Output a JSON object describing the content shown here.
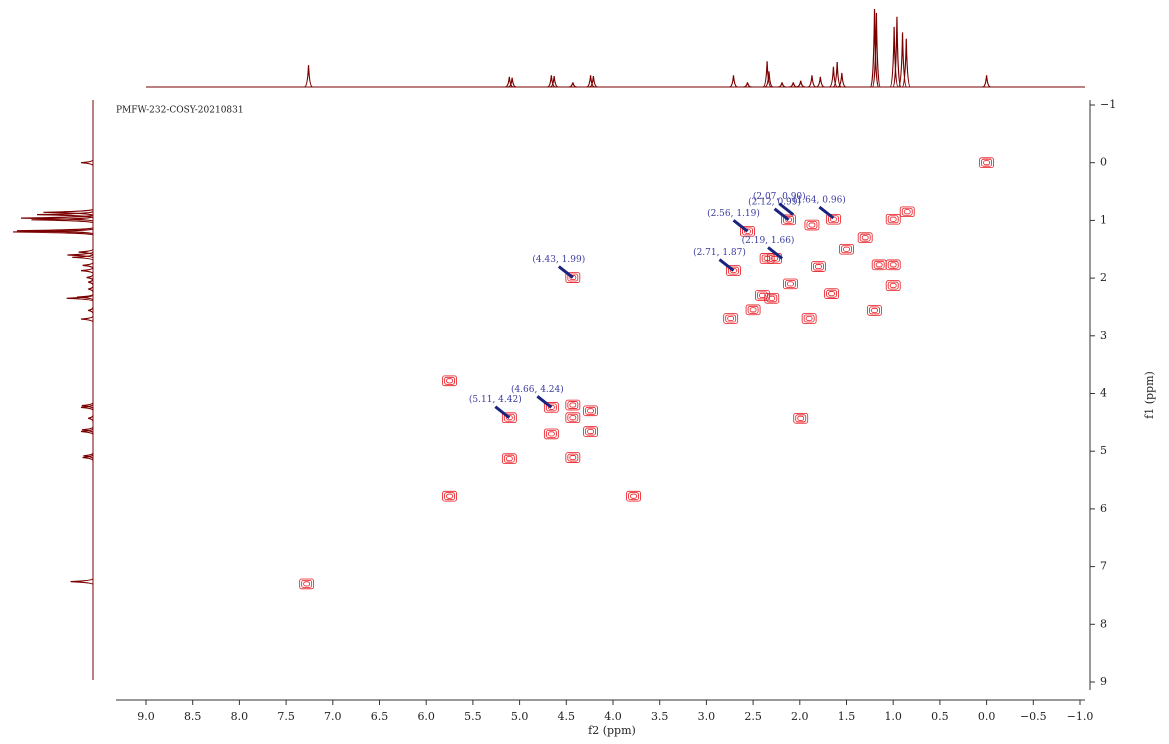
{
  "chart_data": {
    "type": "contour",
    "title": "PMFW-232-COSY-20210831",
    "x_label": "f2 (ppm)",
    "y_label": "f1 (ppm)",
    "xlim": [
      9.0,
      -1.0
    ],
    "xticks": [
      {
        "value": 9,
        "label": "9.0"
      },
      {
        "value": 8.5,
        "label": "8.5"
      },
      {
        "value": 8,
        "label": "8.0"
      },
      {
        "value": 7.5,
        "label": "7.5"
      },
      {
        "value": 7,
        "label": "7.0"
      },
      {
        "value": 6.5,
        "label": "6.5"
      },
      {
        "value": 6,
        "label": "6.0"
      },
      {
        "value": 5.5,
        "label": "5.5"
      },
      {
        "value": 5,
        "label": "5.0"
      },
      {
        "value": 4.5,
        "label": "4.5"
      },
      {
        "value": 4,
        "label": "4.0"
      },
      {
        "value": 3.5,
        "label": "3.5"
      },
      {
        "value": 3,
        "label": "3.0"
      },
      {
        "value": 2.5,
        "label": "2.5"
      },
      {
        "value": 2,
        "label": "2.0"
      },
      {
        "value": 1.5,
        "label": "1.5"
      },
      {
        "value": 1,
        "label": "1.0"
      },
      {
        "value": 0.5,
        "label": "0.5"
      },
      {
        "value": 0,
        "label": "0.0"
      },
      {
        "value": -0.5,
        "label": "−0.5"
      },
      {
        "value": -1,
        "label": "−1.0"
      }
    ],
    "ylim": [
      -1,
      9.3
    ],
    "yticks": [
      {
        "value": -1,
        "label": "−1"
      },
      0,
      1,
      2,
      3,
      4,
      5,
      6,
      7,
      8,
      9
    ],
    "contour_color": "#e8171f",
    "peaks": {
      "x": [
        0.0,
        7.28,
        5.75,
        5.75,
        3.78,
        5.11,
        4.66,
        5.11,
        4.43,
        4.24,
        4.43,
        4.66,
        4.24,
        4.43,
        1.99,
        4.43,
        2.71,
        2.56,
        2.12,
        1.64,
        1.87,
        2.35,
        2.27,
        1.15,
        1.0,
        1.0,
        1.66,
        1.9,
        1.2,
        2.74,
        2.4,
        1.0,
        1.3,
        1.5,
        1.8,
        2.1,
        2.3,
        2.5,
        0.85
      ],
      "y": [
        0.0,
        7.3,
        3.78,
        5.78,
        5.78,
        4.42,
        4.24,
        5.13,
        4.2,
        4.3,
        4.42,
        4.7,
        4.66,
        5.11,
        4.43,
        1.99,
        1.87,
        1.19,
        0.99,
        0.98,
        1.08,
        1.66,
        1.66,
        1.77,
        1.77,
        2.13,
        2.27,
        2.7,
        2.56,
        2.7,
        2.3,
        0.98,
        1.3,
        1.5,
        1.8,
        2.1,
        2.35,
        2.55,
        0.85
      ]
    },
    "annotation_color": "#1a237e",
    "annotations": [
      {
        "text": "(2.12, 0.99)",
        "x": 2.12,
        "y": 0.99
      },
      {
        "text": "(1.64, 0.96)",
        "x": 1.64,
        "y": 0.96
      },
      {
        "text": "(2.56, 1.19)",
        "x": 2.56,
        "y": 1.19
      },
      {
        "text": "(2.07, 0.90)",
        "x": 2.07,
        "y": 0.9
      },
      {
        "text": "(2.19, 1.66)",
        "x": 2.19,
        "y": 1.66
      },
      {
        "text": "(2.71, 1.87)",
        "x": 2.71,
        "y": 1.87
      },
      {
        "text": "(4.43, 1.99)",
        "x": 4.43,
        "y": 1.99
      },
      {
        "text": "(4.66, 4.24)",
        "x": 4.66,
        "y": 4.24
      },
      {
        "text": "(5.11, 4.42)",
        "x": 5.11,
        "y": 4.42
      }
    ],
    "projection_color": "#7a0000",
    "projection": {
      "x": [
        7.26,
        5.11,
        5.08,
        4.66,
        4.63,
        4.43,
        4.24,
        4.21,
        2.71,
        2.56,
        2.35,
        2.33,
        2.19,
        2.07,
        1.99,
        1.87,
        1.78,
        1.64,
        1.6,
        1.55,
        1.2,
        1.18,
        0.99,
        0.96,
        0.9,
        0.86,
        0.0
      ],
      "values": [
        28,
        13,
        12,
        15,
        14,
        6,
        15,
        14,
        15,
        6,
        33,
        20,
        6,
        6,
        8,
        15,
        13,
        26,
        32,
        18,
        100,
        95,
        77,
        90,
        70,
        62,
        15
      ]
    }
  }
}
